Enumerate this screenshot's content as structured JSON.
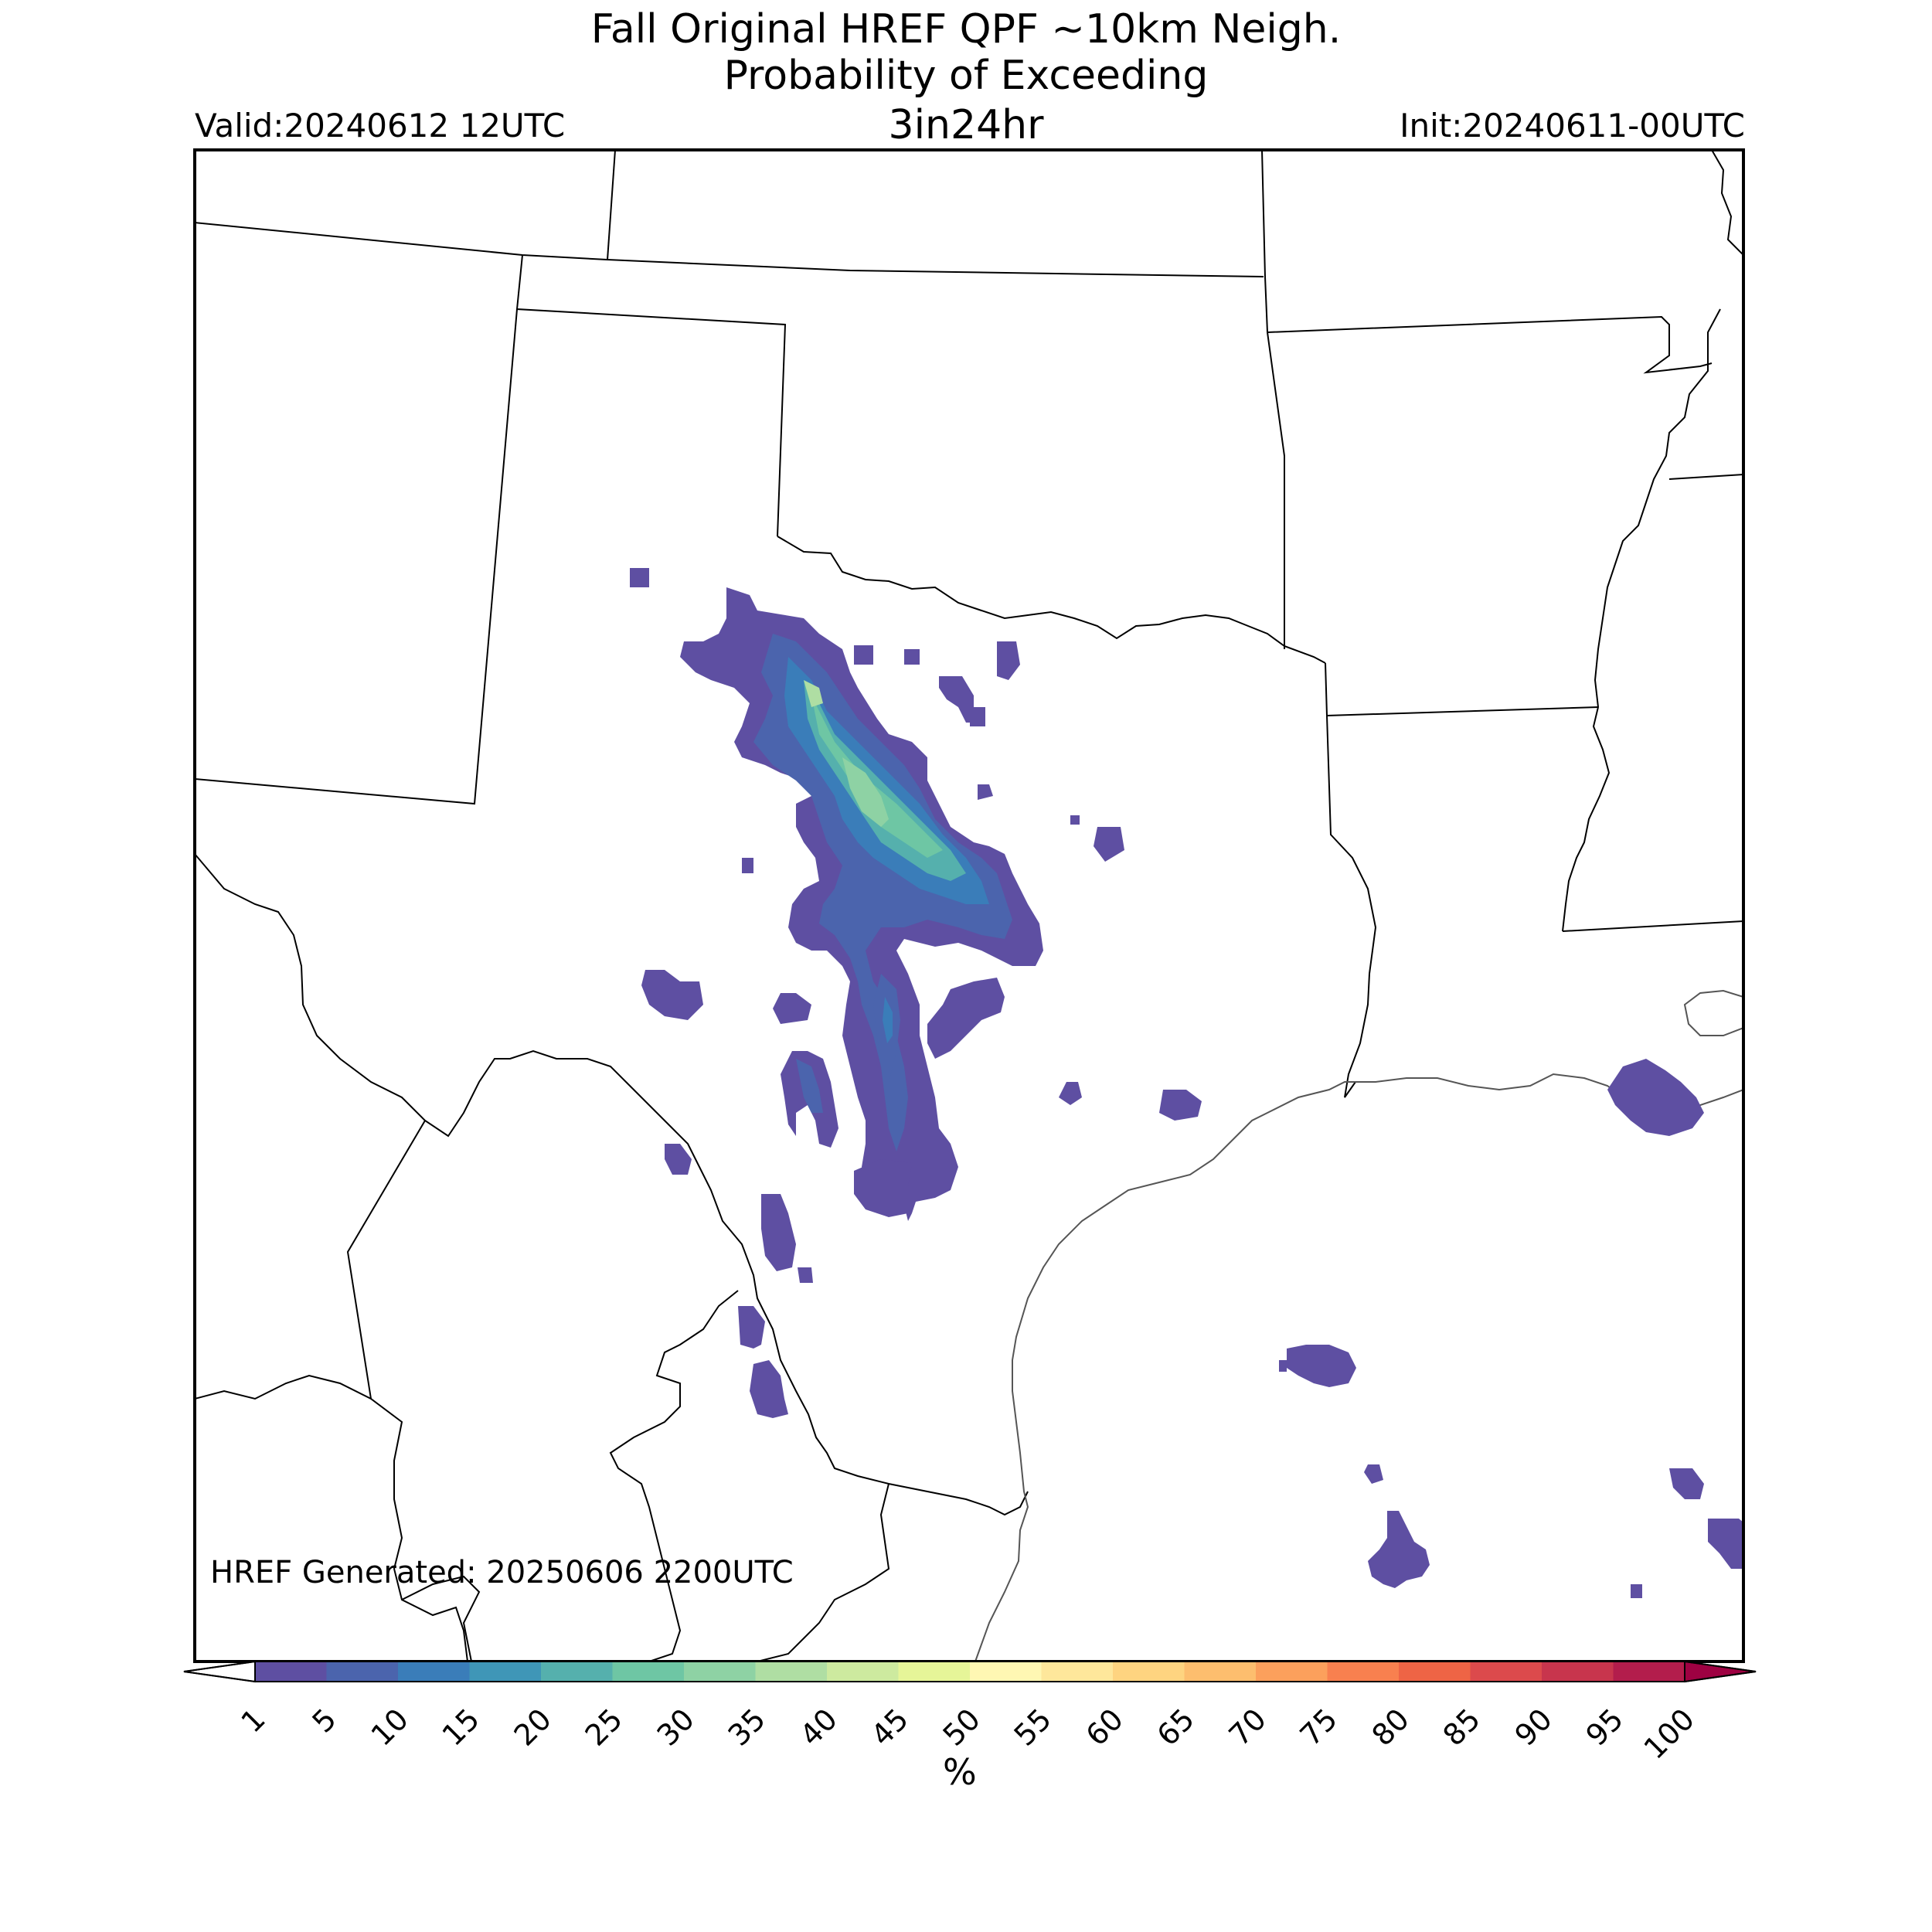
{
  "header": {
    "title_line1": "Fall Original HREF QPF ~10km Neigh.",
    "title_line2": "Probability of Exceeding",
    "title_line3": "3in24hr",
    "valid": "Valid:20240612 12UTC",
    "init": "Init:20240611-00UTC"
  },
  "footer": {
    "generated": "HREF Generated: 20250606 2200UTC"
  },
  "colorbar": {
    "units": "%",
    "levels": [
      "1",
      "5",
      "10",
      "15",
      "20",
      "25",
      "30",
      "35",
      "40",
      "45",
      "50",
      "55",
      "60",
      "65",
      "70",
      "75",
      "80",
      "85",
      "90",
      "95",
      "100"
    ],
    "colors": [
      "#5e4fa2",
      "#4b64ad",
      "#3a7db9",
      "#3f96b7",
      "#55b0ad",
      "#6ec6a4",
      "#8ed2a4",
      "#afdea3",
      "#cdea9f",
      "#e6f598",
      "#fff7b3",
      "#fee79b",
      "#fed480",
      "#fdbe6e",
      "#fca05c",
      "#f8804f",
      "#ee6445",
      "#dc4a4c",
      "#c8354d",
      "#b31d4c",
      "#9e0142"
    ]
  },
  "map": {
    "region": "Texas / Southern Plains / Gulf of Mexico",
    "probability_colors": {
      "p1": "#5e4fa2",
      "p5": "#4b64ad",
      "p10": "#3a7db9",
      "p20": "#55b0ad",
      "p25": "#6ec6a4",
      "p30": "#8ed2a4",
      "p35": "#afdea3"
    }
  }
}
